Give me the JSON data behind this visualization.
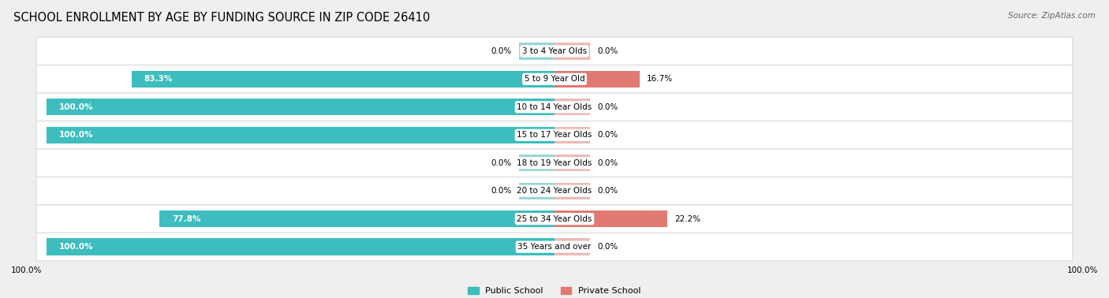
{
  "title": "SCHOOL ENROLLMENT BY AGE BY FUNDING SOURCE IN ZIP CODE 26410",
  "source": "Source: ZipAtlas.com",
  "categories": [
    "3 to 4 Year Olds",
    "5 to 9 Year Old",
    "10 to 14 Year Olds",
    "15 to 17 Year Olds",
    "18 to 19 Year Olds",
    "20 to 24 Year Olds",
    "25 to 34 Year Olds",
    "35 Years and over"
  ],
  "public": [
    0.0,
    83.3,
    100.0,
    100.0,
    0.0,
    0.0,
    77.8,
    100.0
  ],
  "private": [
    0.0,
    16.7,
    0.0,
    0.0,
    0.0,
    0.0,
    22.2,
    0.0
  ],
  "public_color": "#3dbdbd",
  "private_color": "#e07a72",
  "public_color_light": "#9ad5d5",
  "private_color_light": "#eebab5",
  "bg_color": "#efefef",
  "row_bg": "#ffffff",
  "title_fontsize": 10.5,
  "source_fontsize": 7.5,
  "label_fontsize": 7.5,
  "axis_label_fontsize": 7.5,
  "legend_fontsize": 8,
  "bar_height": 0.6,
  "stub_size": 7.0,
  "max_val": 100.0,
  "x_axis_text_left": "100.0%",
  "x_axis_text_right": "100.0%"
}
